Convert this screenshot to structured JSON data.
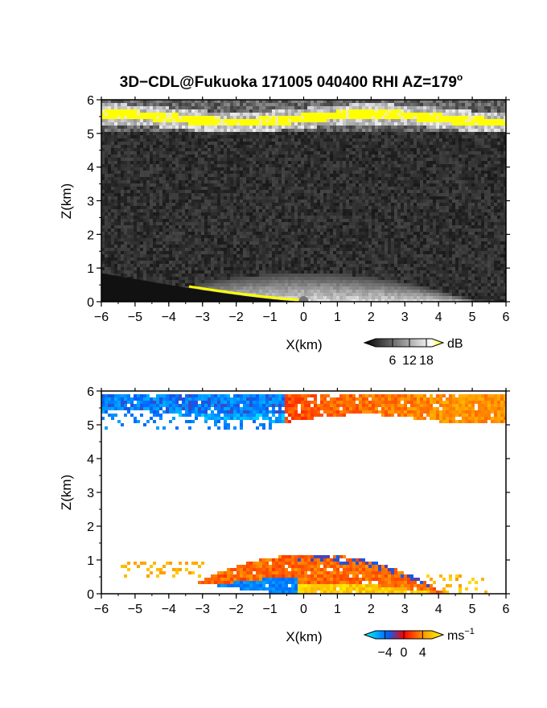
{
  "title": "3D−CDL@Fukuoka 171005 040400 RHI AZ=179",
  "title_superscript": "o",
  "chart_data": [
    {
      "type": "heatmap",
      "panel": "top",
      "quantity": "backscatter intensity",
      "xlabel": "X(km)",
      "ylabel": "Z(km)",
      "xlim": [
        -6,
        6
      ],
      "ylim": [
        0,
        6
      ],
      "xticks": [
        "−6",
        "−5",
        "−4",
        "−3",
        "−2",
        "−1",
        "0",
        "1",
        "2",
        "3",
        "4",
        "5",
        "6"
      ],
      "yticks": [
        "0",
        "1",
        "2",
        "3",
        "4",
        "5",
        "6"
      ],
      "colorbar": {
        "unit": "dB",
        "ticks": [
          "6",
          "12",
          "18"
        ],
        "tick_values": [
          6,
          12,
          18
        ],
        "range": [
          0,
          20
        ],
        "colors": [
          "#000000",
          "#ffffff",
          "#ffff00"
        ]
      },
      "features": {
        "upper_layer_z_km": [
          5.2,
          5.9
        ],
        "lower_layer_z_km": [
          0,
          0.9
        ],
        "peak_near_x_km": 0
      }
    },
    {
      "type": "heatmap",
      "panel": "bottom",
      "quantity": "radial velocity",
      "xlabel": "X(km)",
      "ylabel": "Z(km)",
      "xlim": [
        -6,
        6
      ],
      "ylim": [
        0,
        6
      ],
      "xticks": [
        "−6",
        "−5",
        "−4",
        "−3",
        "−2",
        "−1",
        "0",
        "1",
        "2",
        "3",
        "4",
        "5",
        "6"
      ],
      "yticks": [
        "0",
        "1",
        "2",
        "3",
        "4",
        "5",
        "6"
      ],
      "colorbar": {
        "unit": "ms",
        "unit_superscript": "−1",
        "ticks": [
          "−4",
          "0",
          "4"
        ],
        "tick_values": [
          -4,
          0,
          4
        ],
        "range": [
          -6,
          6
        ],
        "colors": [
          "#00ffff",
          "#0060ff",
          "#ff0000",
          "#ff9900",
          "#ffff00"
        ]
      },
      "features": {
        "upper_layer_z_km": [
          5.0,
          5.9
        ],
        "upper_left_velocity_ms": -3,
        "upper_right_velocity_ms": 3,
        "lower_layer_z_km": [
          0,
          1.2
        ],
        "lower_left_velocity_ms": -4,
        "lower_right_velocity_ms": 3
      }
    }
  ]
}
